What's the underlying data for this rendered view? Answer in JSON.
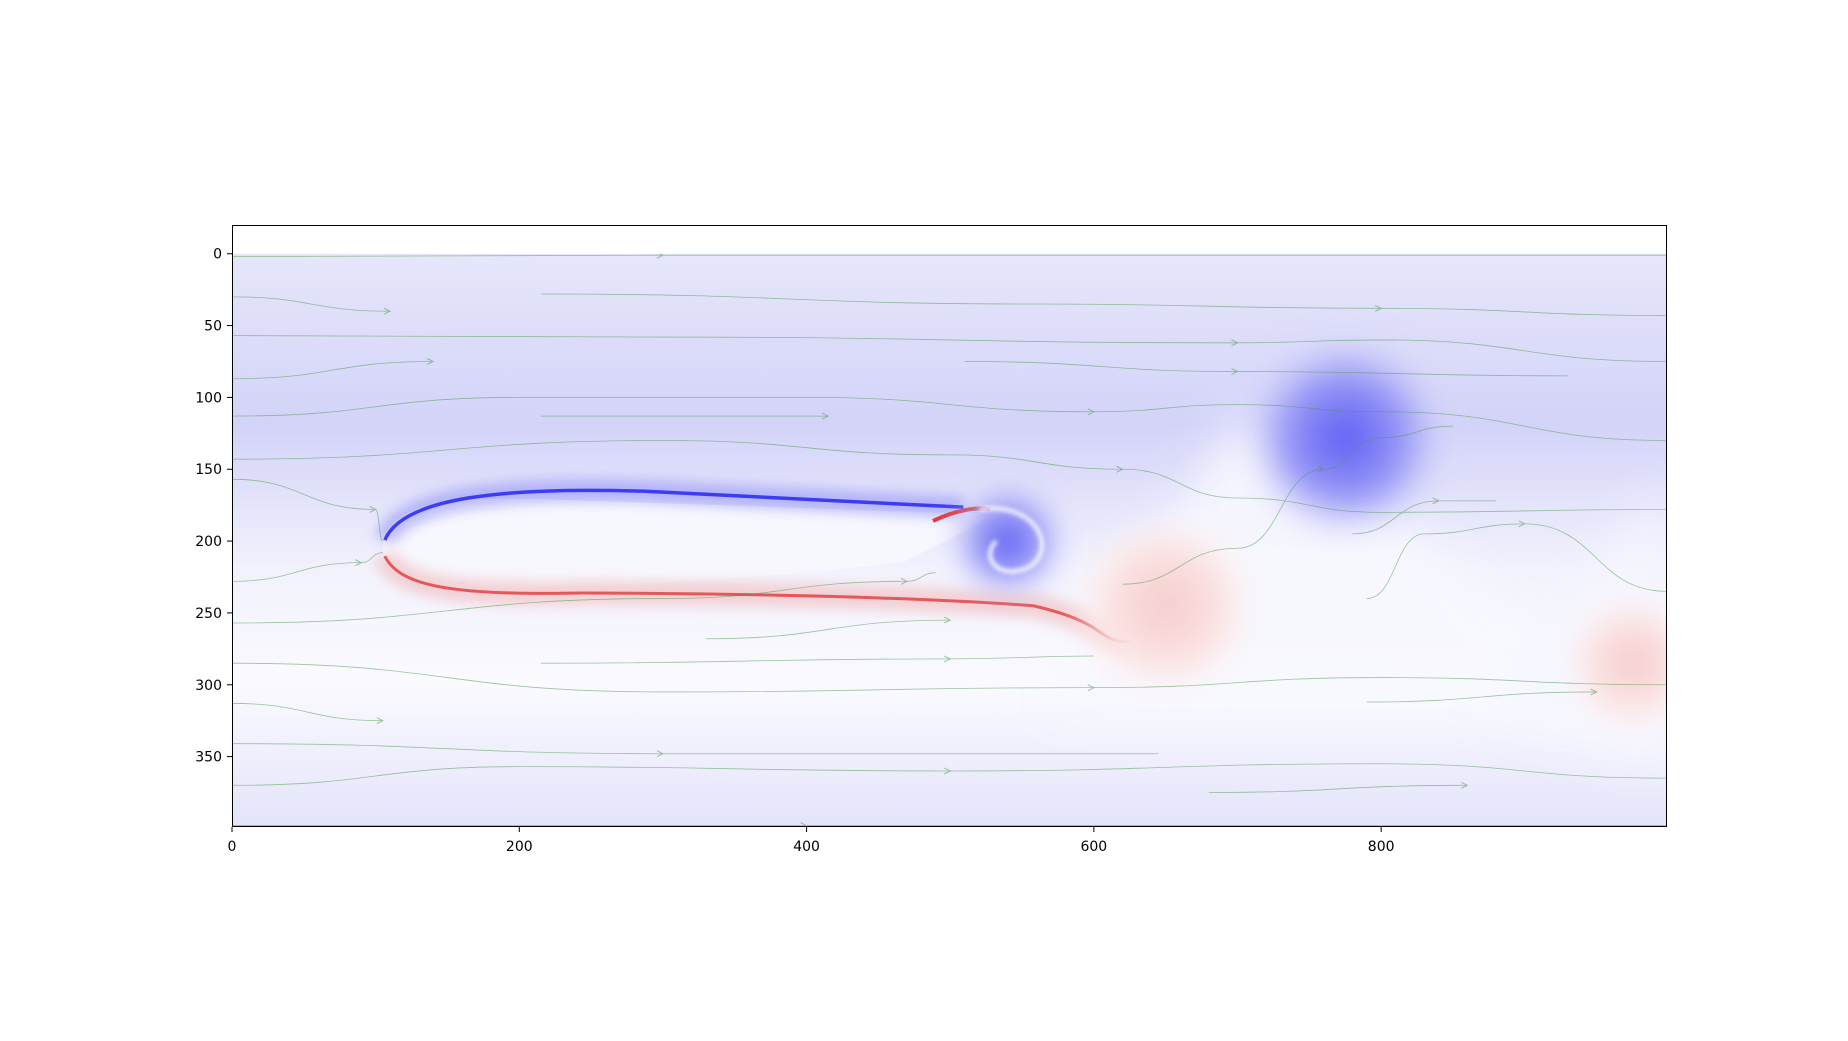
{
  "chart_data": {
    "type": "heatmap",
    "title": "",
    "xlabel": "",
    "ylabel": "",
    "xlim": [
      0,
      999
    ],
    "ylim": [
      399,
      -20
    ],
    "x_ticks": [
      0,
      200,
      400,
      600,
      800
    ],
    "y_ticks": [
      0,
      50,
      100,
      150,
      200,
      250,
      300,
      350
    ],
    "field_extent": {
      "x": [
        0,
        999
      ],
      "y": [
        0,
        399
      ]
    },
    "colormap": "bwr",
    "colors": {
      "background_blue": "#e4e4fb",
      "strong_blue": "#2f2ff5",
      "strong_red": "#e03a3a",
      "neutral": "#ffffff",
      "streamline": "#4c9a4c"
    },
    "body": {
      "shape": "elongated-ellipse",
      "x_range": [
        105,
        530
      ],
      "y_range": [
        175,
        232
      ]
    },
    "vortices": [
      {
        "sign": "negative",
        "x": 540,
        "y": 200,
        "radius": 25
      },
      {
        "sign": "negative",
        "x": 775,
        "y": 128,
        "radius": 45
      },
      {
        "sign": "positive",
        "x": 650,
        "y": 245,
        "radius": 40
      },
      {
        "sign": "positive",
        "x": 975,
        "y": 285,
        "radius": 30
      }
    ],
    "overlay": "streamlines",
    "grid": false,
    "legend": "none"
  }
}
